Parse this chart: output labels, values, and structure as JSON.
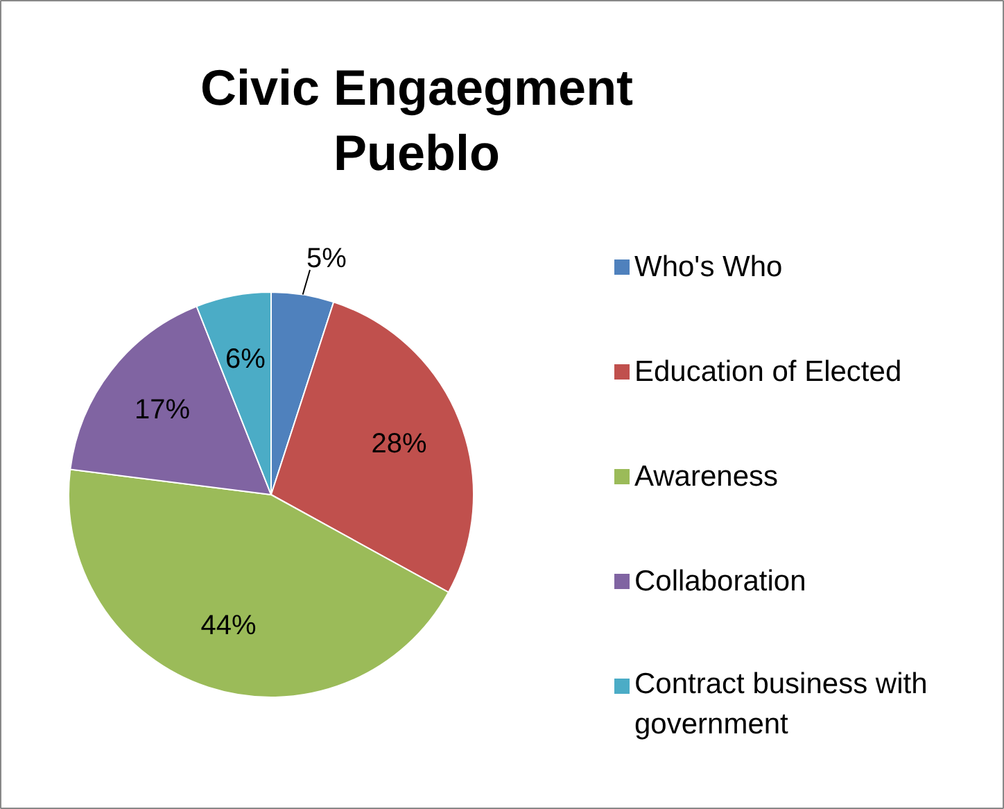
{
  "chart_data": {
    "type": "pie",
    "title": "Civic Engaegment\nPueblo",
    "categories": [
      "Who's Who",
      "Education of Elected",
      "Awareness",
      "Collaboration",
      "Contract business with government"
    ],
    "values": [
      5,
      28,
      44,
      17,
      6
    ],
    "colors": [
      "#4f81bd",
      "#c0504d",
      "#9bbb59",
      "#8064a2",
      "#4bacc6"
    ],
    "value_labels": [
      "5%",
      "28%",
      "44%",
      "17%",
      "6%"
    ],
    "legend": "right"
  }
}
